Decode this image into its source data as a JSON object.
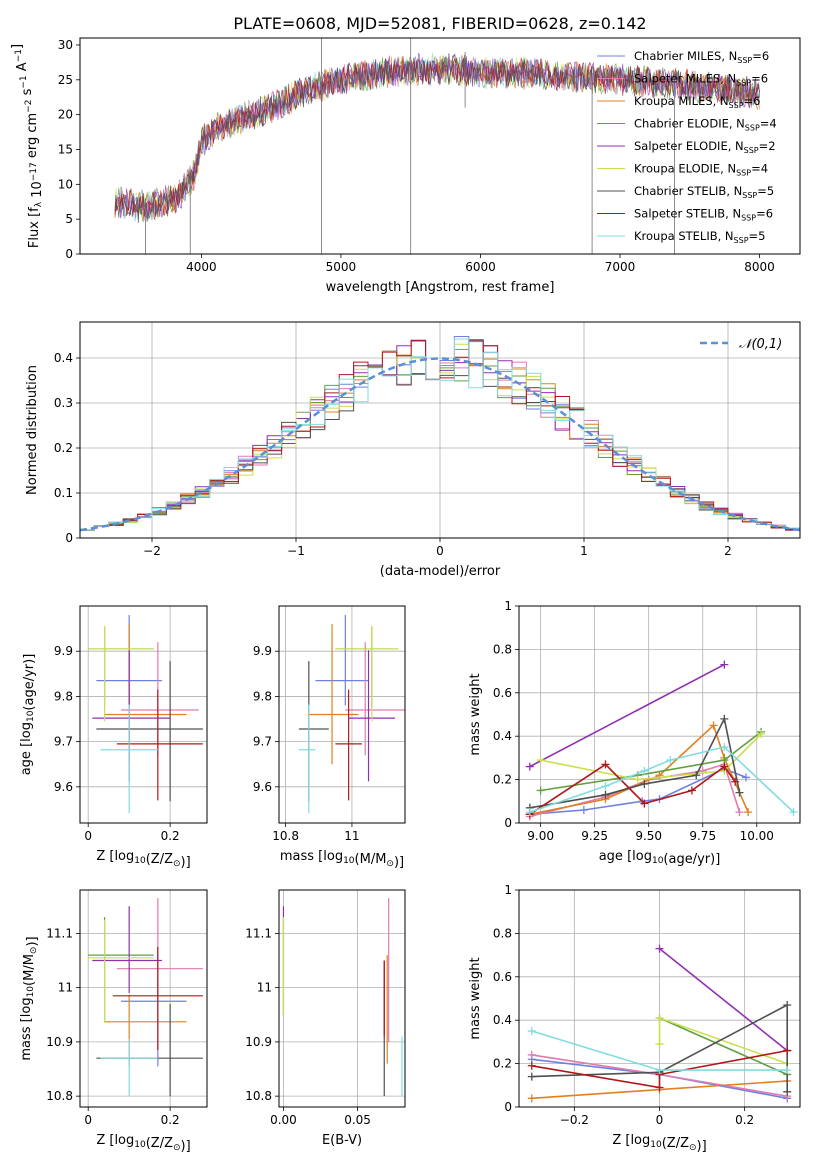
{
  "figure_title": "PLATE=0608, MJD=52081, FIBERID=0628, z=0.142",
  "colors": {
    "chabrier_miles": "#7080e0",
    "salpeter_miles": "#e07ab0",
    "kroupa_miles": "#e08020",
    "chabrier_elodie": "#60a040",
    "salpeter_elodie": "#9030b0",
    "kroupa_elodie": "#c8e050",
    "chabrier_stelib": "#505050",
    "salpeter_stelib": "#b01818",
    "kroupa_stelib": "#80dce0",
    "gaussian": "#5b8fd6"
  },
  "chart_data": [
    {
      "id": "spectrum",
      "type": "line",
      "xlabel": "wavelength [Angstrom, rest frame]",
      "ylabel": "Flux [f_λ 10^-17 erg cm^-2 s^-1 A^-1]",
      "xlim": [
        3130,
        8290
      ],
      "ylim": [
        0,
        31
      ],
      "xticks": [
        4000,
        5000,
        6000,
        7000,
        8000
      ],
      "yticks": [
        0,
        5,
        10,
        15,
        20,
        25,
        30
      ],
      "grid": false,
      "legend_position": "right",
      "legend": [
        {
          "label": "Chabrier MILES, N",
          "sub": "SSP",
          "suffix": "=6",
          "color": "#7080e0"
        },
        {
          "label": "Salpeter MILES, N",
          "sub": "SSP",
          "suffix": "=6",
          "color": "#e07ab0"
        },
        {
          "label": "Kroupa MILES, N",
          "sub": "SSP",
          "suffix": "=6",
          "color": "#e08020"
        },
        {
          "label": "Chabrier ELODIE, N",
          "sub": "SSP",
          "suffix": "=4",
          "color": "#60a040"
        },
        {
          "label": "Salpeter ELODIE, N",
          "sub": "SSP",
          "suffix": "=2",
          "color": "#9030b0"
        },
        {
          "label": "Kroupa ELODIE, N",
          "sub": "SSP",
          "suffix": "=4",
          "color": "#c8e050"
        },
        {
          "label": "Chabrier STELIB, N",
          "sub": "SSP",
          "suffix": "=5",
          "color": "#505050"
        },
        {
          "label": "Salpeter STELIB, N",
          "sub": "SSP",
          "suffix": "=6",
          "color": "#b01818"
        },
        {
          "label": "Kroupa STELIB, N",
          "sub": "SSP",
          "suffix": "=5",
          "color": "#80dce0"
        }
      ],
      "continuum": {
        "wavelength": [
          3400,
          3550,
          3700,
          3850,
          3950,
          4000,
          4100,
          4300,
          4500,
          4700,
          4900,
          5100,
          5300,
          5500,
          5800,
          6000,
          6300,
          6600,
          7000,
          7300,
          7600,
          8000
        ],
        "flux": [
          7.5,
          6.8,
          7.2,
          8.5,
          11.5,
          16.0,
          18.0,
          19.5,
          21.0,
          23.0,
          24.5,
          25.5,
          26.0,
          26.5,
          26.5,
          26.0,
          26.0,
          25.5,
          25.0,
          24.5,
          24.0,
          23.0
        ]
      },
      "spikes": [
        {
          "wavelength": 4860,
          "flux_min": 0,
          "flux_max": 31
        },
        {
          "wavelength": 5500,
          "flux_min": 0,
          "flux_max": 31
        },
        {
          "wavelength": 5890,
          "flux_min": 21,
          "flux_max": 29
        },
        {
          "wavelength": 6800,
          "flux_min": 0,
          "flux_max": 26
        },
        {
          "wavelength": 7390,
          "flux_min": 0,
          "flux_max": 26
        },
        {
          "wavelength": 3600,
          "flux_min": 0,
          "flux_max": 8
        },
        {
          "wavelength": 3920,
          "flux_min": 0,
          "flux_max": 12
        }
      ]
    },
    {
      "id": "residual-histogram",
      "type": "bar",
      "xlabel": "(data-model)/error",
      "ylabel": "Normed distribution",
      "xlim": [
        -2.5,
        2.5
      ],
      "ylim": [
        0,
        0.48
      ],
      "xticks": [
        -2,
        -1,
        0,
        1,
        2
      ],
      "yticks": [
        0.0,
        0.1,
        0.2,
        0.3,
        0.4
      ],
      "grid": true,
      "legend_position": "top-right",
      "legend": [
        {
          "label": "𝒩(0,1)",
          "color": "#5b8fd6"
        }
      ],
      "bin_width": 0.1,
      "gaussian": {
        "mean": 0,
        "sigma": 1
      }
    },
    {
      "id": "age-vs-z",
      "type": "scatter",
      "xlabel": "Z [log10(Z/Z⊙)]",
      "ylabel": "age [log10(age/yr)]",
      "xlim": [
        -0.02,
        0.29
      ],
      "ylim": [
        9.52,
        10.0
      ],
      "xticks": [
        0.0,
        0.2
      ],
      "yticks": [
        9.6,
        9.7,
        9.8,
        9.9
      ],
      "grid": true,
      "errorbars": [
        {
          "x": 0.1,
          "xerr": [
            0.08,
            0.08
          ],
          "y": 9.835,
          "yerr": [
            0.055,
            0.145
          ],
          "color": "#7080e0"
        },
        {
          "x": 0.17,
          "xerr": [
            0.09,
            0.1
          ],
          "y": 9.77,
          "yerr": [
            0.1,
            0.15
          ],
          "color": "#e07ab0"
        },
        {
          "x": 0.1,
          "xerr": [
            0.06,
            0.14
          ],
          "y": 9.76,
          "yerr": [
            0.11,
            0.2
          ],
          "color": "#e08020"
        },
        {
          "x": 0.04,
          "xerr": [
            0.04,
            0.12
          ],
          "y": 9.905,
          "yerr": [
            0.13,
            0.05
          ],
          "color": "#60a040"
        },
        {
          "x": 0.1,
          "xerr": [
            0.09,
            0.1
          ],
          "y": 9.752,
          "yerr": [
            0.14,
            0.15
          ],
          "color": "#9030b0"
        },
        {
          "x": 0.04,
          "xerr": [
            0.04,
            0.12
          ],
          "y": 9.905,
          "yerr": [
            0.16,
            0.05
          ],
          "color": "#c8e050"
        },
        {
          "x": 0.2,
          "xerr": [
            0.18,
            0.08
          ],
          "y": 9.728,
          "yerr": [
            0.16,
            0.15
          ],
          "color": "#505050"
        },
        {
          "x": 0.17,
          "xerr": [
            0.1,
            0.11
          ],
          "y": 9.695,
          "yerr": [
            0.125,
            0.12
          ],
          "color": "#b01818"
        },
        {
          "x": 0.1,
          "xerr": [
            0.07,
            0.07
          ],
          "y": 9.682,
          "yerr": [
            0.14,
            0.1
          ],
          "color": "#80dce0"
        }
      ]
    },
    {
      "id": "age-vs-mass",
      "type": "scatter",
      "xlabel": "mass [log10(M/M⊙)]",
      "ylabel": "",
      "xlim": [
        10.78,
        11.16
      ],
      "ylim": [
        9.52,
        10.0
      ],
      "xticks": [
        10.8,
        11.0
      ],
      "yticks": [
        9.6,
        9.7,
        9.8,
        9.9
      ],
      "grid": true,
      "errorbars": [
        {
          "x": 10.98,
          "xerr": [
            0.09,
            0.07
          ],
          "y": 9.835,
          "yerr": [
            0.055,
            0.145
          ],
          "color": "#7080e0"
        },
        {
          "x": 11.04,
          "xerr": [
            0.06,
            0.12
          ],
          "y": 9.77,
          "yerr": [
            0.1,
            0.15
          ],
          "color": "#e07ab0"
        },
        {
          "x": 10.94,
          "xerr": [
            0.07,
            0.08
          ],
          "y": 9.76,
          "yerr": [
            0.11,
            0.2
          ],
          "color": "#e08020"
        },
        {
          "x": 11.06,
          "xerr": [
            0.11,
            0.08
          ],
          "y": 9.905,
          "yerr": [
            0.13,
            0.05
          ],
          "color": "#60a040"
        },
        {
          "x": 11.05,
          "xerr": [
            0.06,
            0.08
          ],
          "y": 9.752,
          "yerr": [
            0.14,
            0.15
          ],
          "color": "#9030b0"
        },
        {
          "x": 11.06,
          "xerr": [
            0.11,
            0.08
          ],
          "y": 9.905,
          "yerr": [
            0.16,
            0.05
          ],
          "color": "#c8e050"
        },
        {
          "x": 10.87,
          "xerr": [
            0.03,
            0.06
          ],
          "y": 9.728,
          "yerr": [
            0.16,
            0.15
          ],
          "color": "#505050"
        },
        {
          "x": 10.99,
          "xerr": [
            0.04,
            0.04
          ],
          "y": 9.695,
          "yerr": [
            0.125,
            0.12
          ],
          "color": "#b01818"
        },
        {
          "x": 10.87,
          "xerr": [
            0.03,
            0.02
          ],
          "y": 9.682,
          "yerr": [
            0.14,
            0.1
          ],
          "color": "#80dce0"
        }
      ]
    },
    {
      "id": "mass-weight-vs-age",
      "type": "line",
      "xlabel": "age [log10(age/yr)]",
      "ylabel": "mass weight",
      "xlim": [
        8.9,
        10.2
      ],
      "ylim": [
        0,
        1.0
      ],
      "xticks": [
        9.0,
        9.25,
        9.5,
        9.75,
        10.0
      ],
      "xticklabels": [
        "9.00",
        "9.25",
        "9.50",
        "9.75",
        "10.00"
      ],
      "yticks": [
        0.0,
        0.2,
        0.4,
        0.6,
        0.8,
        1.0
      ],
      "grid": true,
      "series": [
        {
          "color": "#7080e0",
          "x": [
            8.95,
            9.2,
            9.47,
            9.55,
            9.85,
            9.95
          ],
          "y": [
            0.04,
            0.06,
            0.1,
            0.11,
            0.25,
            0.21
          ]
        },
        {
          "color": "#e07ab0",
          "x": [
            8.95,
            9.3,
            9.5,
            9.75,
            9.85,
            9.92
          ],
          "y": [
            0.03,
            0.12,
            0.2,
            0.24,
            0.27,
            0.05
          ]
        },
        {
          "color": "#e08020",
          "x": [
            8.95,
            9.3,
            9.55,
            9.8,
            9.85,
            9.96
          ],
          "y": [
            0.04,
            0.11,
            0.22,
            0.45,
            0.3,
            0.05
          ]
        },
        {
          "color": "#60a040",
          "x": [
            9.0,
            9.45,
            9.85,
            10.02
          ],
          "y": [
            0.15,
            0.22,
            0.29,
            0.42
          ]
        },
        {
          "color": "#9030b0",
          "x": [
            8.95,
            9.85
          ],
          "y": [
            0.26,
            0.73
          ]
        },
        {
          "color": "#c8e050",
          "x": [
            9.0,
            9.45,
            9.85,
            10.02
          ],
          "y": [
            0.29,
            0.2,
            0.24,
            0.41
          ]
        },
        {
          "color": "#505050",
          "x": [
            8.95,
            9.3,
            9.48,
            9.72,
            9.85,
            9.92
          ],
          "y": [
            0.07,
            0.13,
            0.18,
            0.22,
            0.48,
            0.14
          ]
        },
        {
          "color": "#b01818",
          "x": [
            8.95,
            9.3,
            9.48,
            9.7,
            9.85,
            9.9
          ],
          "y": [
            0.04,
            0.27,
            0.09,
            0.15,
            0.26,
            0.19
          ]
        },
        {
          "color": "#80dce0",
          "x": [
            8.95,
            9.3,
            9.48,
            9.6,
            9.85,
            10.17
          ],
          "y": [
            0.05,
            0.17,
            0.24,
            0.29,
            0.35,
            0.05
          ]
        }
      ]
    },
    {
      "id": "mass-vs-z",
      "type": "scatter",
      "xlabel": "Z [log10(Z/Z⊙)]",
      "ylabel": "mass [log10(M/M⊙)]",
      "xlim": [
        -0.02,
        0.29
      ],
      "ylim": [
        10.78,
        11.18
      ],
      "xticks": [
        0.0,
        0.2
      ],
      "yticks": [
        10.8,
        10.9,
        11.0,
        11.1
      ],
      "grid": true,
      "errorbars": [
        {
          "x": 0.17,
          "xerr": [
            0.09,
            0.07
          ],
          "y": 10.975,
          "yerr": [
            0.12,
            0.1
          ],
          "color": "#7080e0"
        },
        {
          "x": 0.17,
          "xerr": [
            0.1,
            0.11
          ],
          "y": 11.035,
          "yerr": [
            0.1,
            0.13
          ],
          "color": "#e07ab0"
        },
        {
          "x": 0.1,
          "xerr": [
            0.06,
            0.14
          ],
          "y": 10.937,
          "yerr": [
            0.08,
            0.05
          ],
          "color": "#e08020"
        },
        {
          "x": 0.04,
          "xerr": [
            0.04,
            0.12
          ],
          "y": 11.06,
          "yerr": [
            0.12,
            0.07
          ],
          "color": "#60a040"
        },
        {
          "x": 0.1,
          "xerr": [
            0.09,
            0.08
          ],
          "y": 11.05,
          "yerr": [
            0.06,
            0.1
          ],
          "color": "#9030b0"
        },
        {
          "x": 0.04,
          "xerr": [
            0.04,
            0.12
          ],
          "y": 11.055,
          "yerr": [
            0.12,
            0.07
          ],
          "color": "#c8e050"
        },
        {
          "x": 0.2,
          "xerr": [
            0.18,
            0.08
          ],
          "y": 10.87,
          "yerr": [
            0.07,
            0.1
          ],
          "color": "#505050"
        },
        {
          "x": 0.17,
          "xerr": [
            0.11,
            0.11
          ],
          "y": 10.985,
          "yerr": [
            0.1,
            0.09
          ],
          "color": "#b01818"
        },
        {
          "x": 0.1,
          "xerr": [
            0.07,
            0.07
          ],
          "y": 10.87,
          "yerr": [
            0.07,
            0.035
          ],
          "color": "#80dce0"
        }
      ]
    },
    {
      "id": "mass-vs-ebv",
      "type": "scatter",
      "xlabel": "E(B-V)",
      "ylabel": "",
      "xlim": [
        -0.003,
        0.082
      ],
      "ylim": [
        10.78,
        11.18
      ],
      "xticks": [
        0.0,
        0.05
      ],
      "xticklabels": [
        "0.00",
        "0.05"
      ],
      "yticks": [
        10.8,
        10.9,
        11.0,
        11.1
      ],
      "grid": true,
      "errorbars": [
        {
          "x": 0.0,
          "xerr": [
            0,
            0
          ],
          "y": 11.05,
          "yerr": [
            0.1,
            0.1
          ],
          "color": "#9030b0"
        },
        {
          "x": 0.0,
          "xerr": [
            0,
            0
          ],
          "y": 11.03,
          "yerr": [
            0.08,
            0.1
          ],
          "color": "#c8e050"
        },
        {
          "x": 0.068,
          "xerr": [
            0,
            0
          ],
          "y": 10.92,
          "yerr": [
            0.12,
            0.13
          ],
          "color": "#505050"
        },
        {
          "x": 0.068,
          "xerr": [
            0,
            0
          ],
          "y": 10.98,
          "yerr": [
            0.07,
            0.07
          ],
          "color": "#b01818"
        },
        {
          "x": 0.07,
          "xerr": [
            0,
            0
          ],
          "y": 10.98,
          "yerr": [
            0.12,
            0.08
          ],
          "color": "#e08020"
        },
        {
          "x": 0.071,
          "xerr": [
            0,
            0
          ],
          "y": 11.0,
          "yerr": [
            0.1,
            0.165
          ],
          "color": "#e07ab0"
        },
        {
          "x": 0.08,
          "xerr": [
            0,
            0
          ],
          "y": 10.85,
          "yerr": [
            0.05,
            0.06
          ],
          "color": "#80dce0"
        }
      ]
    },
    {
      "id": "mass-weight-vs-z",
      "type": "line",
      "xlabel": "Z [log10(Z/Z⊙)]",
      "ylabel": "mass weight",
      "xlim": [
        -0.33,
        0.33
      ],
      "ylim": [
        0,
        1.0
      ],
      "xticks": [
        -0.2,
        0.0,
        0.2
      ],
      "yticks": [
        0.0,
        0.2,
        0.4,
        0.6,
        0.8,
        1.0
      ],
      "grid": true,
      "series": [
        {
          "color": "#7080e0",
          "x": [
            -0.3,
            0.0,
            0.3
          ],
          "y": [
            0.22,
            0.15,
            0.04
          ]
        },
        {
          "color": "#e07ab0",
          "x": [
            -0.3,
            0.0,
            0.3
          ],
          "y": [
            0.24,
            0.15,
            0.05
          ]
        },
        {
          "color": "#e08020",
          "x": [
            -0.3,
            0.0,
            0.3
          ],
          "y": [
            0.04,
            0.08,
            0.12
          ]
        },
        {
          "color": "#60a040",
          "x": [
            0.0,
            0.3
          ],
          "y": [
            0.41,
            0.15
          ]
        },
        {
          "color": "#9030b0",
          "x": [
            0.0,
            0.3
          ],
          "y": [
            0.73,
            0.26
          ]
        },
        {
          "color": "#c8e050",
          "x": [
            0.0,
            0.0,
            0.3
          ],
          "y": [
            0.29,
            0.41,
            0.2
          ]
        },
        {
          "color": "#505050",
          "x": [
            -0.3,
            0.0,
            0.3,
            0.3
          ],
          "y": [
            0.14,
            0.16,
            0.47,
            0.07
          ]
        },
        {
          "color": "#b01818",
          "x": [
            -0.3,
            0.0,
            0.0,
            0.3
          ],
          "y": [
            0.19,
            0.09,
            0.15,
            0.26
          ]
        },
        {
          "color": "#80dce0",
          "x": [
            -0.3,
            0.0,
            0.3
          ],
          "y": [
            0.35,
            0.17,
            0.17
          ]
        }
      ]
    }
  ]
}
